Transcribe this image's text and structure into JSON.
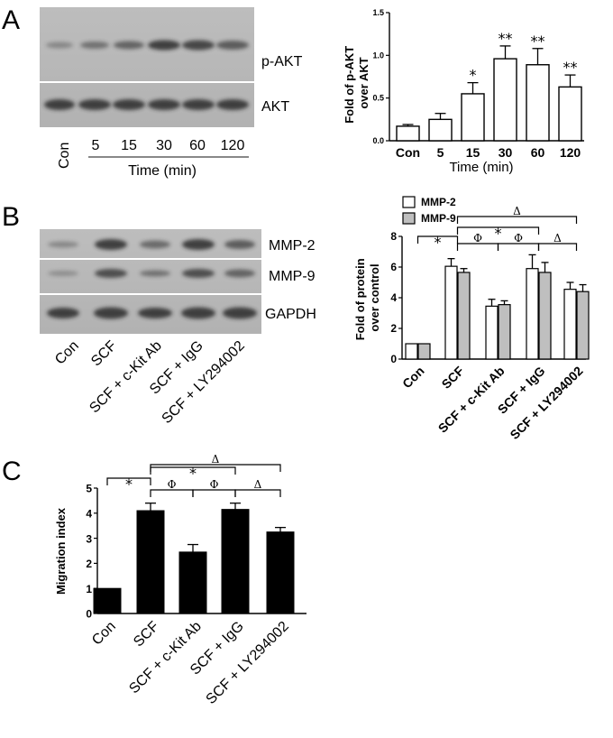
{
  "panels": {
    "a": "A",
    "b": "B",
    "c": "C"
  },
  "blot_a": {
    "rows": [
      "p-AKT",
      "AKT"
    ],
    "lanes": [
      "Con",
      "5",
      "15",
      "30",
      "60",
      "120"
    ],
    "time_label": "Time (min)"
  },
  "blot_b": {
    "rows": [
      "MMP-2",
      "MMP-9",
      "GAPDH"
    ],
    "lanes": [
      "Con",
      "SCF",
      "SCF + c-Kit Ab",
      "SCF + IgG",
      "SCF + LY294002"
    ]
  },
  "chart_data": [
    {
      "type": "bar",
      "panel": "A",
      "categories": [
        "Con",
        "5",
        "15",
        "30",
        "60",
        "120"
      ],
      "values": [
        0.17,
        0.25,
        0.55,
        0.96,
        0.89,
        0.63
      ],
      "errors": [
        0.02,
        0.07,
        0.13,
        0.15,
        0.19,
        0.14
      ],
      "significance": [
        "",
        "",
        "*",
        "**",
        "**",
        "**"
      ],
      "xlabel": "Time (min)",
      "ylabel": "Fold of p-AKT over AKT",
      "ylim": [
        0,
        1.5
      ],
      "yticks": [
        "0.0",
        "0.5",
        "1.0",
        "1.5"
      ],
      "bar_color": "#ffffff"
    },
    {
      "type": "bar",
      "panel": "B",
      "categories": [
        "Con",
        "SCF",
        "SCF + c-Kit Ab",
        "SCF + IgG",
        "SCF + LY294002"
      ],
      "series": [
        {
          "name": "MMP-2",
          "values": [
            1.0,
            6.05,
            3.45,
            5.9,
            4.55
          ],
          "errors": [
            0,
            0.5,
            0.45,
            0.9,
            0.45
          ],
          "color": "#ffffff"
        },
        {
          "name": "MMP-9",
          "values": [
            1.0,
            5.65,
            3.55,
            5.65,
            4.4
          ],
          "errors": [
            0,
            0.25,
            0.25,
            0.65,
            0.45
          ],
          "color": "#bfbfbf"
        }
      ],
      "ylabel": "Fold of protein over control",
      "ylim": [
        0,
        8
      ],
      "yticks": [
        "0",
        "2",
        "4",
        "6",
        "8"
      ],
      "brackets": [
        {
          "from": 0,
          "to": 1,
          "label": "*"
        },
        {
          "from": 1,
          "to": 2,
          "label": "Φ"
        },
        {
          "from": 1,
          "to": 3,
          "label": "*"
        },
        {
          "from": 2,
          "to": 3,
          "label": "Φ"
        },
        {
          "from": 1,
          "to": 4,
          "label": "Δ"
        },
        {
          "from": 3,
          "to": 4,
          "label": "Δ"
        }
      ],
      "legend": "top-left"
    },
    {
      "type": "bar",
      "panel": "C",
      "categories": [
        "Con",
        "SCF",
        "SCF + c-Kit Ab",
        "SCF + IgG",
        "SCF + LY294002"
      ],
      "values": [
        1.0,
        4.1,
        2.45,
        4.15,
        3.25
      ],
      "errors": [
        0,
        0.3,
        0.3,
        0.25,
        0.18
      ],
      "ylabel": "Migration index",
      "ylim": [
        0,
        5
      ],
      "yticks": [
        "0",
        "1",
        "2",
        "3",
        "4",
        "5"
      ],
      "bar_color": "#000000",
      "brackets": [
        {
          "from": 0,
          "to": 1,
          "label": "*"
        },
        {
          "from": 1,
          "to": 2,
          "label": "Φ"
        },
        {
          "from": 1,
          "to": 3,
          "label": "*"
        },
        {
          "from": 2,
          "to": 3,
          "label": "Φ"
        },
        {
          "from": 1,
          "to": 4,
          "label": "Δ"
        },
        {
          "from": 3,
          "to": 4,
          "label": "Δ"
        }
      ]
    }
  ]
}
